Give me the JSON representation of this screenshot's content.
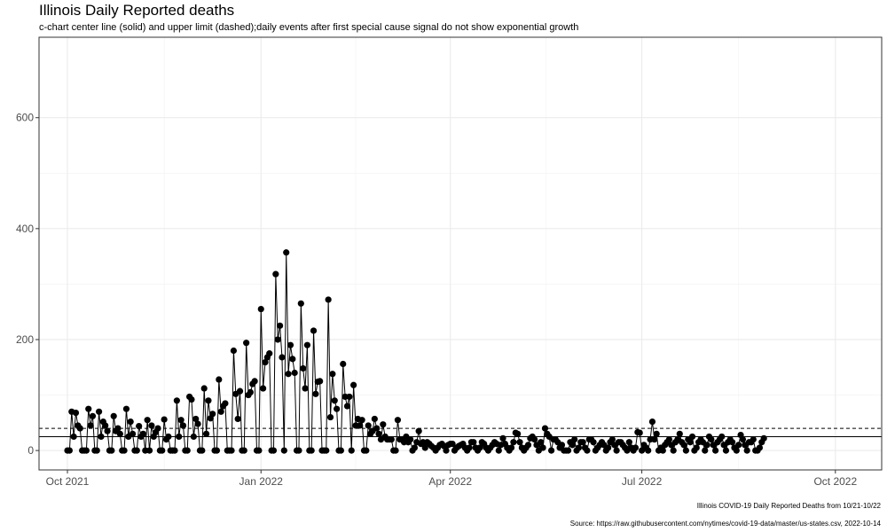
{
  "chart_data": {
    "type": "line",
    "title": "Illinois Daily Reported deaths",
    "subtitle": "c-chart center line (solid) and upper limit (dashed);daily events after first special cause signal do not show exponential growth",
    "caption1": "Illinois COVID-19 Daily Reported Deaths from 10/21-10/22",
    "caption2": "Source: https://raw.githubusercontent.com/nytimes/covid-19-data/master/us-states.csv, 2022-10-14",
    "xlabel": "",
    "ylabel": "",
    "x_start_date": "2021-10-01",
    "x_ticks": [
      {
        "label": "Oct 2021",
        "day": 0
      },
      {
        "label": "Jan 2022",
        "day": 92
      },
      {
        "label": "Apr 2022",
        "day": 182
      },
      {
        "label": "Jul 2022",
        "day": 273
      },
      {
        "label": "Oct 2022",
        "day": 365
      }
    ],
    "x_range_days": [
      -13.5,
      387
    ],
    "y_ticks": [
      0,
      200,
      400,
      600
    ],
    "y_range": [
      -35,
      745
    ],
    "center_line": 25,
    "upper_limit": 40,
    "grid": true,
    "series": [
      {
        "name": "Daily Reported deaths",
        "values": [
          0,
          0,
          70,
          25,
          68,
          45,
          40,
          0,
          0,
          0,
          75,
          45,
          62,
          0,
          0,
          70,
          25,
          52,
          45,
          35,
          0,
          0,
          62,
          35,
          40,
          30,
          0,
          0,
          75,
          25,
          52,
          30,
          0,
          0,
          44,
          25,
          30,
          0,
          55,
          0,
          45,
          25,
          33,
          40,
          0,
          0,
          56,
          20,
          25,
          0,
          0,
          0,
          90,
          25,
          55,
          45,
          0,
          0,
          97,
          92,
          25,
          57,
          48,
          0,
          0,
          112,
          30,
          90,
          58,
          66,
          0,
          0,
          128,
          70,
          80,
          85,
          0,
          0,
          0,
          180,
          102,
          57,
          107,
          0,
          0,
          194,
          100,
          105,
          120,
          125,
          0,
          0,
          255,
          112,
          159,
          168,
          175,
          0,
          0,
          318,
          200,
          225,
          168,
          0,
          357,
          138,
          190,
          165,
          140,
          0,
          0,
          265,
          148,
          112,
          190,
          0,
          0,
          216,
          102,
          124,
          125,
          0,
          0,
          0,
          272,
          60,
          138,
          90,
          75,
          0,
          0,
          156,
          97,
          80,
          97,
          0,
          118,
          45,
          57,
          45,
          55,
          0,
          0,
          45,
          30,
          35,
          57,
          40,
          30,
          20,
          47,
          25,
          20,
          20,
          20,
          0,
          0,
          55,
          20,
          20,
          15,
          25,
          15,
          20,
          0,
          5,
          15,
          35,
          12,
          15,
          5,
          15,
          12,
          8,
          5,
          0,
          5,
          10,
          12,
          8,
          0,
          10,
          12,
          12,
          0,
          5,
          8,
          10,
          12,
          5,
          0,
          5,
          15,
          15,
          5,
          0,
          5,
          15,
          12,
          5,
          0,
          5,
          10,
          15,
          12,
          0,
          10,
          22,
          12,
          5,
          0,
          5,
          15,
          32,
          30,
          15,
          5,
          0,
          5,
          10,
          22,
          25,
          20,
          10,
          0,
          15,
          5,
          40,
          30,
          25,
          0,
          20,
          20,
          15,
          5,
          10,
          0,
          0,
          0,
          15,
          10,
          20,
          0,
          5,
          15,
          15,
          5,
          0,
          20,
          20,
          15,
          0,
          5,
          10,
          15,
          10,
          0,
          5,
          15,
          20,
          10,
          0,
          15,
          15,
          10,
          5,
          0,
          15,
          5,
          0,
          5,
          33,
          32,
          0,
          10,
          5,
          0,
          20,
          52,
          20,
          30,
          0,
          5,
          0,
          10,
          15,
          20,
          10,
          0,
          15,
          20,
          30,
          15,
          10,
          0,
          20,
          15,
          25,
          0,
          5,
          15,
          20,
          15,
          0,
          10,
          25,
          20,
          10,
          0,
          15,
          20,
          25,
          10,
          0,
          15,
          20,
          15,
          5,
          0,
          10,
          28,
          20,
          10,
          0,
          15,
          15,
          20,
          0,
          0,
          5,
          15,
          22
        ]
      }
    ]
  }
}
